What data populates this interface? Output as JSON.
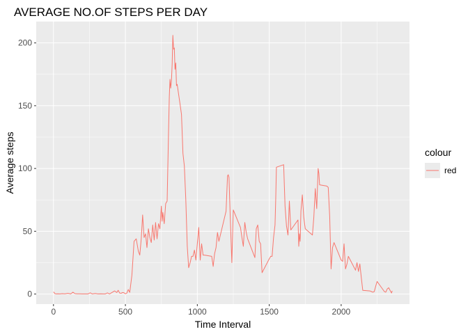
{
  "chart_data": {
    "type": "line",
    "title": "AVERAGE NO.OF STEPS PER DAY",
    "xlabel": "Time Interval",
    "ylabel": "Average steps",
    "xlim": [
      -120,
      2475
    ],
    "ylim": [
      -8,
      217
    ],
    "x_ticks": [
      0,
      500,
      1000,
      1500,
      2000
    ],
    "y_ticks": [
      0,
      50,
      100,
      150,
      200
    ],
    "grid": true,
    "legend_position": "right",
    "legend_title": "colour",
    "series": [
      {
        "name": "red",
        "color": "#f8766d",
        "x": [
          0,
          10,
          20,
          30,
          45,
          60,
          80,
          100,
          120,
          135,
          150,
          165,
          180,
          200,
          220,
          240,
          255,
          270,
          290,
          310,
          330,
          345,
          360,
          375,
          390,
          410,
          425,
          440,
          450,
          460,
          470,
          480,
          490,
          500,
          510,
          520,
          530,
          545,
          560,
          575,
          590,
          600,
          610,
          620,
          630,
          640,
          650,
          660,
          670,
          680,
          690,
          700,
          710,
          720,
          730,
          740,
          750,
          755,
          760,
          770,
          780,
          790,
          800,
          805,
          810,
          815,
          820,
          825,
          830,
          835,
          840,
          845,
          850,
          855,
          860,
          870,
          880,
          890,
          900,
          910,
          920,
          930,
          940,
          950,
          960,
          970,
          980,
          990,
          1000,
          1010,
          1020,
          1030,
          1040,
          1050,
          1100,
          1110,
          1120,
          1130,
          1140,
          1150,
          1200,
          1210,
          1215,
          1220,
          1230,
          1240,
          1250,
          1300,
          1310,
          1320,
          1330,
          1340,
          1350,
          1400,
          1410,
          1420,
          1430,
          1440,
          1450,
          1500,
          1510,
          1520,
          1530,
          1540,
          1545,
          1550,
          1600,
          1610,
          1620,
          1630,
          1640,
          1650,
          1700,
          1705,
          1710,
          1715,
          1720,
          1730,
          1740,
          1750,
          1800,
          1810,
          1820,
          1830,
          1840,
          1845,
          1850,
          1900,
          1910,
          1920,
          1930,
          1940,
          1950,
          2000,
          2010,
          2020,
          2030,
          2040,
          2050,
          2100,
          2110,
          2120,
          2130,
          2140,
          2150,
          2200,
          2210,
          2220,
          2230,
          2240,
          2250,
          2300,
          2310,
          2320,
          2330,
          2340,
          2350,
          2355
        ],
        "values": [
          1.7,
          0.3,
          0.1,
          0.2,
          0.1,
          0.3,
          0.2,
          0.6,
          0.1,
          1.5,
          0.3,
          0.2,
          0.2,
          0.1,
          0.1,
          0.1,
          1.0,
          0.1,
          0.4,
          0.1,
          0.2,
          0.1,
          0.1,
          0.9,
          0.1,
          1.5,
          2.5,
          1.2,
          3.0,
          0.8,
          0.6,
          1.2,
          1.0,
          0.2,
          0.7,
          3.6,
          1.3,
          15.0,
          42.0,
          44.0,
          34.0,
          31.0,
          44.0,
          63.0,
          45.0,
          48.0,
          37.0,
          52.0,
          45.0,
          41.0,
          55.0,
          43.0,
          57.0,
          44.0,
          56.0,
          52.0,
          70.0,
          58.0,
          65.0,
          56.0,
          72.0,
          74.0,
          129.0,
          157.0,
          171.0,
          164.0,
          170.0,
          183.0,
          206.0,
          195.0,
          196.0,
          179.0,
          184.0,
          166.0,
          167.0,
          159.0,
          151.0,
          143.0,
          112.0,
          102.0,
          75.0,
          38.0,
          21.0,
          25.0,
          30.0,
          30.0,
          35.0,
          27.0,
          40.0,
          53.0,
          27.0,
          40.0,
          31.0,
          31.0,
          30.0,
          22.0,
          32.0,
          37.0,
          49.0,
          42.0,
          66.0,
          94.0,
          95.0,
          93.0,
          58.0,
          25.0,
          67.0,
          53.0,
          45.0,
          38.0,
          57.0,
          49.0,
          44.0,
          29.0,
          52.0,
          55.0,
          42.0,
          40.0,
          17.0,
          28.0,
          30.0,
          30.0,
          45.0,
          55.0,
          75.0,
          101.0,
          103.0,
          70.0,
          54.0,
          47.0,
          74.0,
          51.0,
          59.0,
          38.0,
          48.0,
          42.0,
          66.0,
          79.0,
          61.0,
          52.0,
          47.0,
          61.0,
          84.0,
          68.0,
          100.0,
          96.0,
          87.0,
          86.0,
          85.0,
          62.0,
          20.0,
          37.0,
          41.0,
          27.0,
          26.0,
          40.0,
          20.0,
          24.0,
          30.0,
          19.0,
          25.0,
          18.0,
          24.0,
          13.0,
          3.0,
          2.5,
          2.0,
          1.5,
          2.0,
          6.3,
          10.0,
          2.0,
          1.5,
          4.0,
          5.0,
          3.0,
          0.8,
          2.6
        ]
      }
    ]
  }
}
